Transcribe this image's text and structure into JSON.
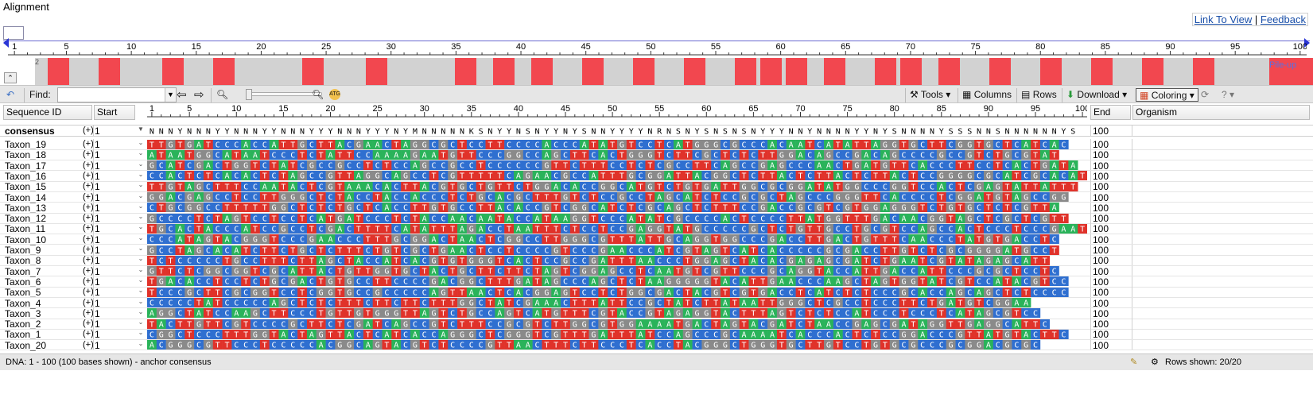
{
  "page": {
    "title": "Alignment",
    "link_to_view": "Link To View",
    "separator": "|",
    "feedback": "Feedback"
  },
  "overview": {
    "ruler_start": "1",
    "ruler_ticks": [
      "5",
      "10",
      "15",
      "20",
      "25",
      "30",
      "35",
      "40",
      "45",
      "50",
      "55",
      "60",
      "65",
      "70",
      "75",
      "80",
      "85",
      "90",
      "95",
      "100"
    ],
    "label_2": "2",
    "pileup": "Pile-up",
    "red_columns": [
      2,
      6,
      11,
      15,
      22,
      27,
      34,
      37,
      40,
      44,
      48,
      52,
      56,
      58,
      60,
      63,
      67,
      69,
      72,
      76,
      80,
      84,
      88,
      92,
      98,
      99,
      100
    ]
  },
  "toolbar": {
    "find_label": "Find:",
    "find_value": "",
    "tools": "Tools",
    "columns": "Columns",
    "rows": "Rows",
    "download": "Download",
    "coloring": "Coloring"
  },
  "headers": {
    "sequence_id": "Sequence ID",
    "start": "Start",
    "end": "End",
    "organism": "Organism"
  },
  "ruler": {
    "start": "1",
    "ticks": [
      "5",
      "10",
      "15",
      "20",
      "25",
      "30",
      "35",
      "40",
      "45",
      "50",
      "55",
      "60",
      "65",
      "70",
      "75",
      "80",
      "85",
      "90",
      "95",
      "100"
    ]
  },
  "consensus": {
    "label": "consensus",
    "plus": "(+)",
    "start": "1",
    "end": "100",
    "seq": "NNNYNNNYYNNNYYNNNYYYNNNYYYNYMNNNNNKSNYYNSNYYNYSNNYYYYNRNSNYSNSNSNYYYNNYNNNNYYNYSNNNNYSSSNNSNNNNNNYS"
  },
  "colors": {
    "A": "#2ab35a",
    "C": "#2f6fd0",
    "G": "#8a8a8a",
    "T": "#e0322a",
    "N": "#ffffff",
    "accent": "#1a4fa8"
  },
  "rows": [
    {
      "label": "Taxon_19",
      "plus": "(+)",
      "start": "1",
      "end": "100",
      "seq": "TTGTGATCCCACCATTGCTTACGAACTAGGCGCTCCTTCCCCACCCATATGTCCTCATGGGCGCCCACAATCATATTAGGTGCTTCGGTGCTCATCAC"
    },
    {
      "label": "Taxon_18",
      "plus": "(+)",
      "start": "1",
      "end": "100",
      "seq": "ATAATGGCATAATCCCTCTATTCCAAAAGAATGTTCCCGGCCAGCTTCACTGGGTCTTCGCTCTCTTGGACAGCCGACAGCCCCGCCGTCTGCGTAT"
    },
    {
      "label": "Taxon_17",
      "plus": "(+)",
      "start": "1",
      "end": "100",
      "seq": "GCATCGACTGGTCTATCGCCGCCTCTCCAGCCGCCTCCCCCCGTTCTTTCCTCTCGCCTTCAGCCGAGCCCAACTGATGTTCACCCTTCCTCACTGATA"
    },
    {
      "label": "Taxon_16",
      "plus": "(+)",
      "start": "1",
      "end": "100",
      "seq": "CCACTCTCACACTCTAGCCGTTAGGCAGCCTCGTTTTTCAGAACGCCATTTGCGGATTACGGCTCTTACTCTTACTCTTACTCCGGGGCGCATCGCACATGG"
    },
    {
      "label": "Taxon_15",
      "plus": "(+)",
      "start": "1",
      "end": "100",
      "seq": "TTGTAGCTTTCCAATACTCGTAAACACTTACGTGCTGTTCTGGACACCGGCATGTCTGTGATTGGCGCGGATATGGCCCGGTCCACTCGAGTATTATTT"
    },
    {
      "label": "Taxon_14",
      "plus": "(+)",
      "start": "1",
      "end": "100",
      "seq": "GGACGAGCCTCCTTGGGCTCTACCTACCACCCTCTGCACGCTTTGTCTCCGCCTAGCATCTCCGCGCTAGCCCGGGTTCACCCCTCGGATGTAGCCGG"
    },
    {
      "label": "Taxon_13",
      "plus": "(+)",
      "start": "1",
      "end": "100",
      "seq": "CTGCGGCCTTTTTGGCTCTCTGCTCACCTTGTGCCTTACACCGTCGGCATCTCGCAGCTCTTTCCGACCGCGTCGTGGAGGGTCTGTGCTCTCGTTA"
    },
    {
      "label": "Taxon_12",
      "plus": "(+)",
      "start": "1",
      "end": "100",
      "seq": "GCCCCTCTAGTCCTCCTCATGATCCCTCTACCAACAATACCATAAGGTCCCATATCGCCCCACTCCCCTTATGGTTTGACAACGGTAGCTCGCTCGTT"
    },
    {
      "label": "Taxon_11",
      "plus": "(+)",
      "start": "1",
      "end": "100",
      "seq": "TGCACTACCCATCCGCCTCGACTTTTCATATTTAGACCTAATTTCTCCTCCGAGGTATGCCCCCGCTCTGTTGCCTGCGTCCAGCCACTCCCTCCCGAATG"
    },
    {
      "label": "Taxon_10",
      "plus": "(+)",
      "start": "1",
      "end": "100",
      "seq": "CCCATAGTACGGGTCCCGAACCCTTTGCGGACTAACTCGGCCTTGGGCGTTTATTGCAGGTGGCCCGACCTTGACTGTTTCAACCCTATGTGACCTC"
    },
    {
      "label": "Taxon_9",
      "plus": "(+)",
      "start": "1",
      "end": "100",
      "seq": "GCCTAGCACATCTTCTGCTCTTTCTGTCGCTGAACTCCTCCCCGTCCCGAACCCATCGTAGTCATCACCCCCGCGACCTTGTCTCGCGGGGATGCCT"
    },
    {
      "label": "Taxon_8",
      "plus": "(+)",
      "start": "1",
      "end": "100",
      "seq": "TCTCCCCCTGCCTTTCTTAGCTACCATCACGTGTGGGTCACTCCGCCGATTTAACCCTGGAGCTACACGAGAGCGATCTGAATCGTATAGAGCATT"
    },
    {
      "label": "Taxon_7",
      "plus": "(+)",
      "start": "1",
      "end": "100",
      "seq": "GTTCTCGGCGGTCGCATTACTGTTGGTGCTACTGCTTCTTCTAGTCGGAGCCTCAATGTCGTTCCCGCAGGTACCATTGACCATTCCCGCGCTCCTC"
    },
    {
      "label": "Taxon_6",
      "plus": "(+)",
      "start": "1",
      "end": "100",
      "seq": "TGACACCTCCTCTGCGACTGTGCCTTCCCCGACGGCTTTGATAGCCCAGCTCTAAGGGGGTACATTGAACCCAAGCTAGTGGTATCGTCCATACGTCC"
    },
    {
      "label": "Taxon_5",
      "plus": "(+)",
      "start": "1",
      "end": "100",
      "seq": "TCCCGCTTCGCGGTCCTCGGTGCCGCCCCCAGTTAACTCACGGAGTCCTCTGGCGACTACGTCGTGACCTCATCTCTCCCGCACCAGCAGCTCTCCCC"
    },
    {
      "label": "Taxon_4",
      "plus": "(+)",
      "start": "1",
      "end": "100",
      "seq": "CCCCCTATCCCCCAGCTCTCTTTCTTCTTCTTTGGCTATCGAAACTTTATTCCGCTATCTTATAATTGGGCTCGCCTCCCTTCTGATGTCGGAA"
    },
    {
      "label": "Taxon_3",
      "plus": "(+)",
      "start": "1",
      "end": "100",
      "seq": "AGGCTATCCAAGCTTCCCTGTTGTGGGTTAGTCTGCCAGTCATGTTTCGTACCGTAGAGGTACTTTAGTCTCTCCATCCCTCCCTCATAGCGTCC"
    },
    {
      "label": "Taxon_2",
      "plus": "(+)",
      "start": "1",
      "end": "100",
      "seq": "TACTTGTTCGTCCCCGCTTCTCGATCAGCCGTCTTTCCGCGTCTTGGCGTGGAAAATGACTAGTACGATCTAACCGAGCGATAGGTTGAGGCATTC"
    },
    {
      "label": "Taxon_1",
      "plus": "(+)",
      "start": "1",
      "end": "100",
      "seq": "CGGCTCCCTTTGGTACTAGTTACTCATCACCAGGGCTCGGGTCGTTTGATTTATCCAGCCCGCAAAATCACCCACTCTCCGGACCCGTTATGTACTTC"
    },
    {
      "label": "Taxon_20",
      "plus": "(+)",
      "start": "1",
      "end": "100",
      "seq": "ACGGGCGTTCCCTCCCCCACGGCAGTACGTCTCCCCGTTAACTTTCTTCCCTCACCTACGGGCTGGGTGCTTGTCCTGTGCGCCCGCGGACGCGC"
    }
  ],
  "status": {
    "text": "DNA: 1 - 100 (100 bases shown) - anchor consensus",
    "rows_shown": "Rows shown: 20/20"
  }
}
